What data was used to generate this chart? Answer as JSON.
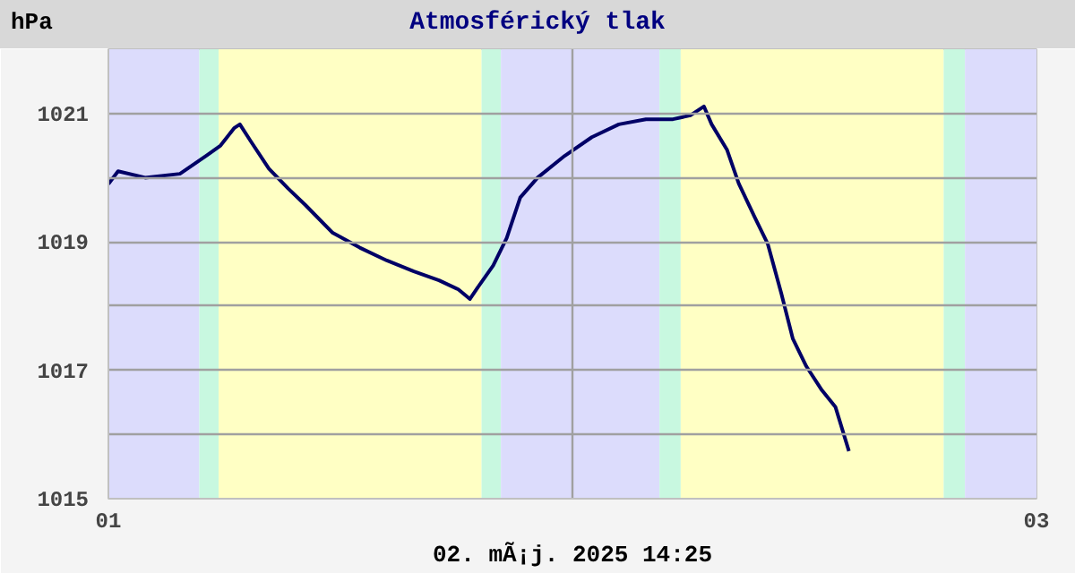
{
  "chart_data": {
    "type": "line",
    "title": "Atmosférický tlak",
    "ylabel": "hPa",
    "annotations": [
      "02. mÃ¡j. 2025 14:25"
    ],
    "x": [
      "2025-05-01T00:00",
      "2025-05-01T00:30",
      "2025-05-01T01:54",
      "2025-05-01T03:42",
      "2025-05-01T05:06",
      "2025-05-01T05:48",
      "2025-05-01T06:30",
      "2025-05-01T06:48",
      "2025-05-01T07:24",
      "2025-05-01T08:18",
      "2025-05-01T09:18",
      "2025-05-01T10:12",
      "2025-05-01T11:36",
      "2025-05-01T13:00",
      "2025-05-01T14:24",
      "2025-05-01T15:48",
      "2025-05-01T17:06",
      "2025-05-01T18:06",
      "2025-05-01T18:42",
      "2025-05-01T19:06",
      "2025-05-01T19:54",
      "2025-05-01T20:36",
      "2025-05-01T21:18",
      "2025-05-01T22:12",
      "2025-05-01T23:36",
      "2025-05-02T01:00",
      "2025-05-02T02:24",
      "2025-05-02T03:48",
      "2025-05-02T05:12",
      "2025-05-02T06:06",
      "2025-05-02T06:48",
      "2025-05-02T07:12",
      "2025-05-02T08:00",
      "2025-05-02T08:36",
      "2025-05-02T09:24",
      "2025-05-02T10:06",
      "2025-05-02T10:48",
      "2025-05-02T11:24",
      "2025-05-02T12:06",
      "2025-05-02T12:54",
      "2025-05-02T13:36",
      "2025-05-02T14:18"
    ],
    "series": [
      {
        "color": "#000066",
        "values": [
          1019.9,
          1020.1,
          1020.0,
          1020.06,
          1020.35,
          1020.5,
          1020.77,
          1020.83,
          1020.55,
          1020.14,
          1019.83,
          1019.57,
          1019.14,
          1018.91,
          1018.71,
          1018.54,
          1018.4,
          1018.26,
          1018.11,
          1018.29,
          1018.63,
          1019.06,
          1019.69,
          1020.0,
          1020.34,
          1020.63,
          1020.83,
          1020.91,
          1020.91,
          1020.97,
          1021.11,
          1020.83,
          1020.43,
          1019.91,
          1019.4,
          1018.97,
          1018.2,
          1017.49,
          1017.06,
          1016.69,
          1016.43,
          1015.74
        ]
      }
    ],
    "xlim": [
      "2025-05-01",
      "2025-05-03"
    ],
    "ylim": [
      1015,
      1022
    ],
    "xticks": [
      {
        "value": "2025-05-01",
        "label": "01"
      },
      {
        "value": "2025-05-02",
        "label": null
      },
      {
        "value": "2025-05-03",
        "label": "03"
      }
    ],
    "yticks": [
      1015,
      {
        "value": 1016,
        "label": null
      },
      1017,
      {
        "value": 1018,
        "label": null
      },
      1019,
      {
        "value": 1020,
        "label": null
      },
      1021,
      {
        "value": 1022,
        "label": null
      }
    ],
    "grid": true,
    "marker": "none",
    "line_style": "solid",
    "bands": [
      {
        "axis": "x",
        "from": "2025-05-01T00:00",
        "to": "2025-05-01T04:42",
        "color": "#dcdcfc"
      },
      {
        "axis": "x",
        "from": "2025-05-01T04:42",
        "to": "2025-05-01T05:42",
        "color": "#c8f8e0"
      },
      {
        "axis": "x",
        "from": "2025-05-01T05:42",
        "to": "2025-05-01T19:18",
        "color": "#ffffc4"
      },
      {
        "axis": "x",
        "from": "2025-05-01T19:18",
        "to": "2025-05-01T20:18",
        "color": "#c8f8e0"
      },
      {
        "axis": "x",
        "from": "2025-05-01T20:18",
        "to": "2025-05-02T04:30",
        "color": "#dcdcfc"
      },
      {
        "axis": "x",
        "from": "2025-05-02T04:30",
        "to": "2025-05-02T05:36",
        "color": "#c8f8e0"
      },
      {
        "axis": "x",
        "from": "2025-05-02T05:36",
        "to": "2025-05-02T19:12",
        "color": "#ffffc4"
      },
      {
        "axis": "x",
        "from": "2025-05-02T19:12",
        "to": "2025-05-02T20:18",
        "color": "#c8f8e0"
      },
      {
        "axis": "x",
        "from": "2025-05-02T20:18",
        "to": "2025-05-03T00:00",
        "color": "#dcdcfc"
      }
    ]
  }
}
